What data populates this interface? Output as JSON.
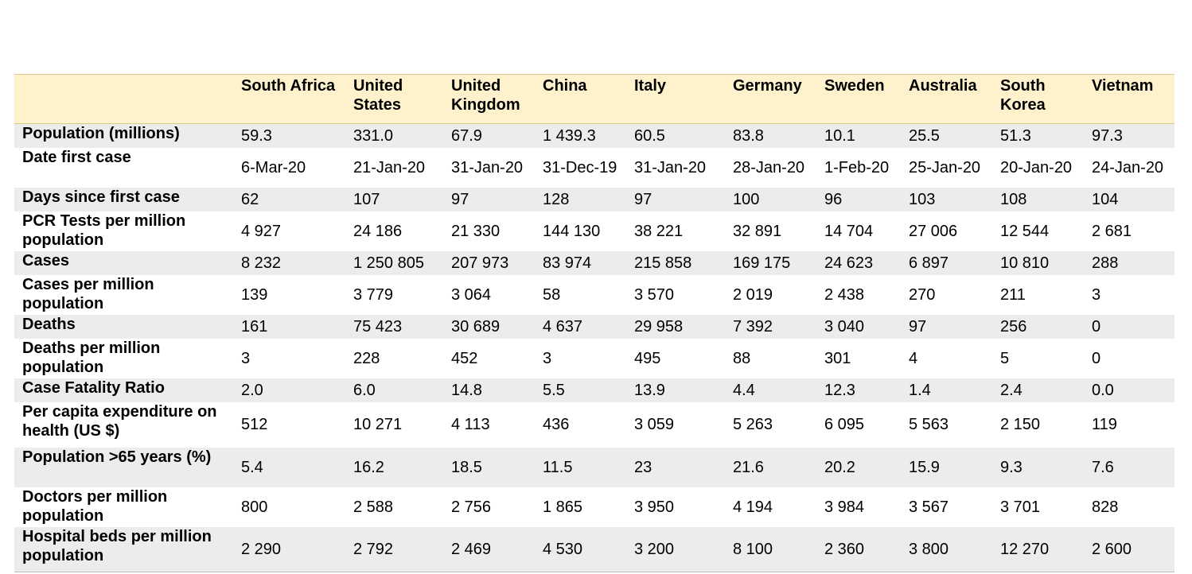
{
  "table": {
    "headers": [
      "",
      "South Africa",
      "United States",
      "United Kingdom",
      "China",
      "Italy",
      "Germany",
      "Sweden",
      "Australia",
      "South Korea",
      "Vietnam"
    ],
    "rows": [
      {
        "label": "Population (millions)",
        "values": [
          "59.3",
          "331.0",
          "67.9",
          "1 439.3",
          "60.5",
          "83.8",
          "10.1",
          "25.5",
          "51.3",
          "97.3"
        ]
      },
      {
        "label": "Date first case",
        "values": [
          "6-Mar-20",
          "21-Jan-20",
          "31-Jan-20",
          "31-Dec-19",
          "31-Jan-20",
          "28-Jan-20",
          "1-Feb-20",
          "25-Jan-20",
          "20-Jan-20",
          "24-Jan-20"
        ]
      },
      {
        "label": "Days since first case",
        "values": [
          "62",
          "107",
          "97",
          "128",
          "97",
          "100",
          "96",
          "103",
          "108",
          "104"
        ]
      },
      {
        "label": "PCR Tests per million population",
        "values": [
          "4 927",
          "24 186",
          "21 330",
          "144 130",
          "38 221",
          "32 891",
          "14 704",
          "27 006",
          "12 544",
          "2 681"
        ]
      },
      {
        "label": "Cases",
        "values": [
          "8 232",
          "1 250 805",
          "207 973",
          "83 974",
          "215 858",
          "169 175",
          "24 623",
          "6 897",
          "10 810",
          "288"
        ]
      },
      {
        "label": "Cases per million population",
        "values": [
          "139",
          "3 779",
          "3 064",
          "58",
          "3 570",
          "2 019",
          "2 438",
          "270",
          "211",
          "3"
        ]
      },
      {
        "label": "Deaths",
        "values": [
          "161",
          "75 423",
          "30 689",
          "4 637",
          "29 958",
          "7 392",
          "3 040",
          "97",
          "256",
          "0"
        ]
      },
      {
        "label": "Deaths per million population",
        "values": [
          "3",
          "228",
          "452",
          "3",
          "495",
          "88",
          "301",
          "4",
          "5",
          "0"
        ]
      },
      {
        "label": "Case Fatality Ratio",
        "values": [
          "2.0",
          "6.0",
          "14.8",
          "5.5",
          "13.9",
          "4.4",
          "12.3",
          "1.4",
          "2.4",
          "0.0"
        ]
      },
      {
        "label": "Per capita expenditure on health (US $)",
        "values": [
          "512",
          "10 271",
          "4 113",
          "436",
          "3 059",
          "5 263",
          "6 095",
          "5 563",
          "2 150",
          "119"
        ]
      },
      {
        "label": "Population >65 years (%)",
        "values": [
          "5.4",
          "16.2",
          "18.5",
          "11.5",
          "23",
          "21.6",
          "20.2",
          "15.9",
          "9.3",
          "7.6"
        ]
      },
      {
        "label": "Doctors per million population",
        "values": [
          "800",
          "2 588",
          "2 756",
          "1 865",
          "3 950",
          "4 194",
          "3 984",
          "3 567",
          "3 701",
          "828"
        ]
      },
      {
        "label": "Hospital beds per million population",
        "values": [
          "2 290",
          "2 792",
          "2 469",
          "4 530",
          "3 200",
          "8 100",
          "2 360",
          "3 800",
          "12 270",
          "2 600"
        ]
      }
    ]
  }
}
